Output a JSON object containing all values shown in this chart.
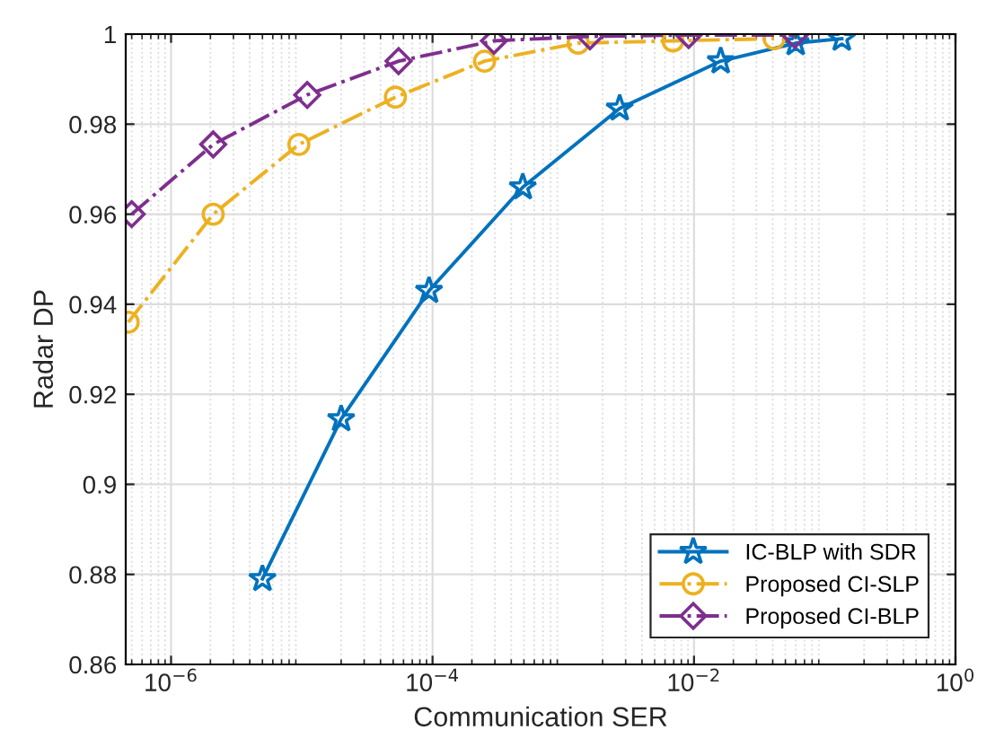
{
  "chart_data": {
    "type": "line",
    "xlabel": "Communication SER",
    "ylabel": "Radar DP",
    "log": "x",
    "grid": true,
    "legend": "lower right",
    "xlim": [
      4.5e-07,
      1
    ],
    "ylim": [
      0.86,
      1
    ],
    "xticks": [
      {
        "value": 1e-06,
        "label": "10$^{−6}$"
      },
      {
        "value": 0.0001,
        "label": "10$^{−4}$"
      },
      {
        "value": 0.01,
        "label": "10$^{−2}$"
      },
      {
        "value": 1,
        "label": "10$^{0}$"
      }
    ],
    "yticks": [
      0.86,
      0.88,
      0.9,
      0.92,
      0.94,
      0.96,
      0.98,
      1
    ],
    "series": [
      {
        "name": "IC-BLP with SDR",
        "color": "#0072bd",
        "marker": "star",
        "line_style": "solid",
        "x": [
          5e-06,
          2e-05,
          9.4e-05,
          0.00049,
          0.0027,
          0.016,
          0.06,
          0.135
        ],
        "values": [
          0.879,
          0.9145,
          0.943,
          0.966,
          0.9835,
          0.994,
          0.998,
          0.999
        ]
      },
      {
        "name": "Proposed CI-SLP",
        "color": "#edb120",
        "marker": "circle",
        "line_style": "dashed",
        "x": [
          4.7e-07,
          2.1e-06,
          9.5e-06,
          5.2e-05,
          0.00025,
          0.0013,
          0.0069,
          0.041
        ],
        "values": [
          0.936,
          0.96,
          0.9755,
          0.986,
          0.994,
          0.998,
          0.9985,
          0.999
        ]
      },
      {
        "name": "Proposed CI-BLP",
        "color": "#7e2f8e",
        "marker": "diamond",
        "line_style": "dashed",
        "x": [
          5e-07,
          2.1e-06,
          1.1e-05,
          5.5e-05,
          0.000295,
          0.0016,
          0.0091,
          0.059
        ],
        "values": [
          0.96,
          0.9755,
          0.9865,
          0.994,
          0.9985,
          0.9995,
          0.9998,
          0.9998
        ]
      }
    ]
  }
}
